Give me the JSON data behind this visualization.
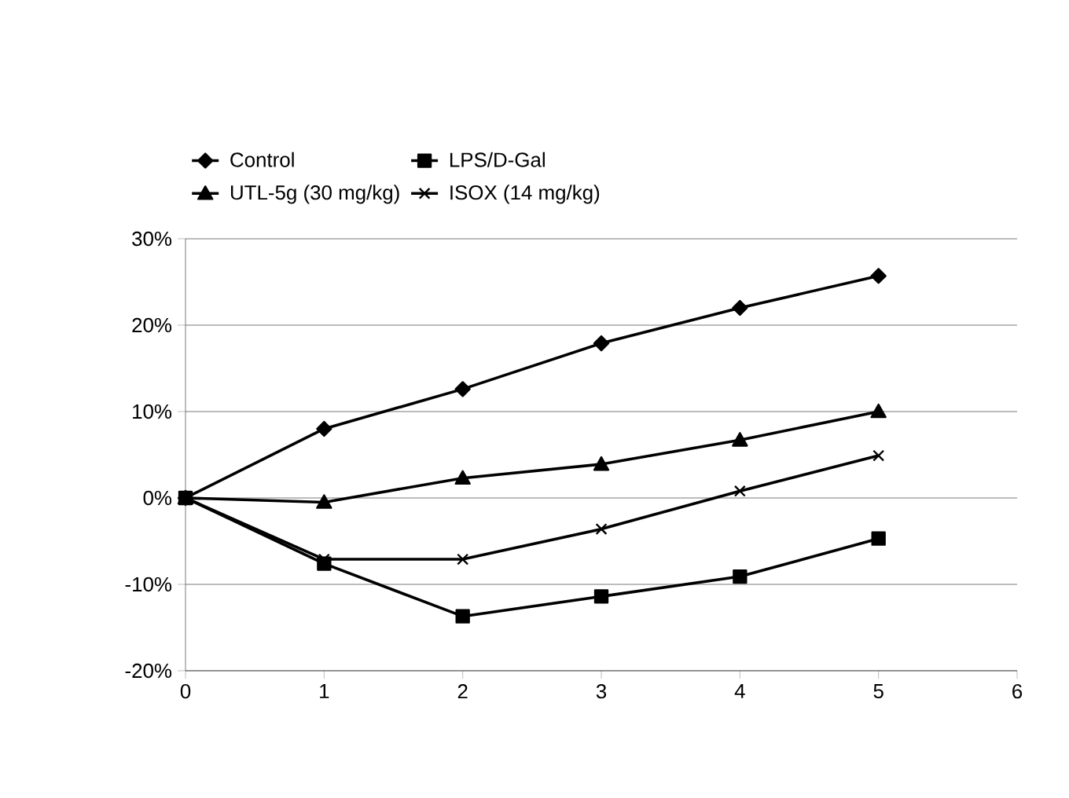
{
  "chart_data": {
    "type": "line",
    "x": [
      0,
      1,
      2,
      3,
      4,
      5
    ],
    "series": [
      {
        "name": "Control",
        "color": "#000000",
        "marker": "diamond",
        "values": [
          0,
          8.0,
          12.6,
          17.9,
          22.0,
          25.7
        ]
      },
      {
        "name": "LPS/D-Gal",
        "color": "#000000",
        "marker": "square",
        "values": [
          0,
          -7.6,
          -13.7,
          -11.4,
          -9.1,
          -4.7
        ]
      },
      {
        "name": "UTL-5g (30 mg/kg)",
        "color": "#000000",
        "marker": "triangle",
        "values": [
          0,
          -0.5,
          2.3,
          3.9,
          6.7,
          10.0
        ]
      },
      {
        "name": "ISOX (14 mg/kg)",
        "color": "#000000",
        "marker": "cross",
        "values": [
          0,
          -7.1,
          -7.1,
          -3.6,
          0.8,
          4.9
        ]
      }
    ],
    "xlim": [
      0,
      6
    ],
    "xticks": [
      0,
      1,
      2,
      3,
      4,
      5,
      6
    ],
    "ylim": [
      -20,
      30
    ],
    "yticks": [
      {
        "value": -20,
        "label": "-20%"
      },
      {
        "value": -10,
        "label": "-10%"
      },
      {
        "value": 0,
        "label": "0%"
      },
      {
        "value": 10,
        "label": "10%"
      },
      {
        "value": 20,
        "label": "20%"
      },
      {
        "value": 30,
        "label": "30%"
      }
    ],
    "grid": "y",
    "legend": "top",
    "line_style": "solid"
  }
}
